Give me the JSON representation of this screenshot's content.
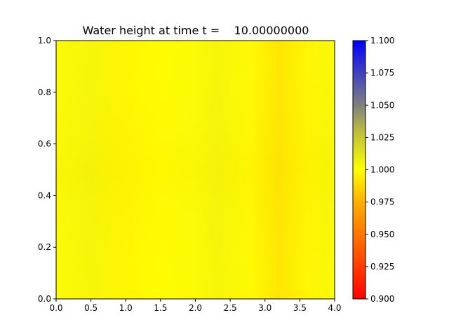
{
  "chart_data": {
    "type": "heatmap",
    "title": "Water height at time t =    10.00000000",
    "xlabel": "",
    "ylabel": "",
    "xlim": [
      0.0,
      4.0
    ],
    "ylim": [
      0.0,
      1.0
    ],
    "x_ticks": [
      "0.0",
      "0.5",
      "1.0",
      "1.5",
      "2.0",
      "2.5",
      "3.0",
      "3.5",
      "4.0"
    ],
    "y_ticks": [
      "0.0",
      "0.2",
      "0.4",
      "0.6",
      "0.8",
      "1.0"
    ],
    "colorbar": {
      "range": [
        0.9,
        1.1
      ],
      "ticks": [
        "0.900",
        "0.925",
        "0.950",
        "0.975",
        "1.000",
        "1.025",
        "1.050",
        "1.075",
        "1.100"
      ],
      "colors": [
        {
          "value": 0.9,
          "color": "#ff0000"
        },
        {
          "value": 0.975,
          "color": "#ffb000"
        },
        {
          "value": 1.0,
          "color": "#ffff00"
        },
        {
          "value": 1.025,
          "color": "#c8c832"
        },
        {
          "value": 1.05,
          "color": "#808080"
        },
        {
          "value": 1.1,
          "color": "#0000ff"
        }
      ]
    },
    "x_profile": [
      {
        "x": 0.0,
        "value": 1.002
      },
      {
        "x": 0.5,
        "value": 1.004
      },
      {
        "x": 1.0,
        "value": 0.997
      },
      {
        "x": 1.5,
        "value": 0.999
      },
      {
        "x": 2.0,
        "value": 1.002
      },
      {
        "x": 2.3,
        "value": 1.004
      },
      {
        "x": 2.8,
        "value": 0.998
      },
      {
        "x": 3.2,
        "value": 0.992
      },
      {
        "x": 3.6,
        "value": 0.997
      },
      {
        "x": 3.9,
        "value": 1.003
      },
      {
        "x": 4.0,
        "value": 1.001
      }
    ]
  }
}
